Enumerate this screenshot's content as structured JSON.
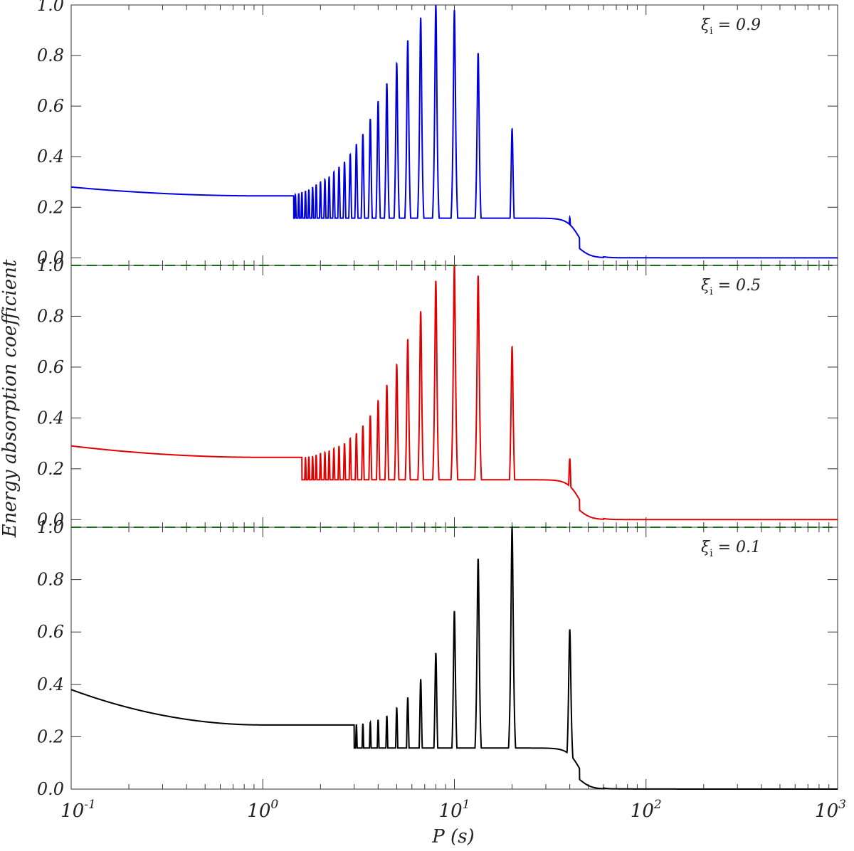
{
  "chart_data": {
    "type": "line",
    "xscale": "log",
    "xlim": [
      0.1,
      1000
    ],
    "xlabel": "P (s)",
    "ylabel": "Energy absorption coefficient",
    "x_ticks": [
      {
        "value": 0.1,
        "base": "10",
        "exp": "-1"
      },
      {
        "value": 1,
        "base": "10",
        "exp": "0"
      },
      {
        "value": 10,
        "base": "10",
        "exp": "1"
      },
      {
        "value": 100,
        "base": "10",
        "exp": "2"
      },
      {
        "value": 1000,
        "base": "10",
        "exp": "3"
      }
    ],
    "y_ticks": [
      "0.0",
      "0.2",
      "0.4",
      "0.6",
      "0.8",
      "1.0"
    ],
    "reference_line": {
      "y": 0.0,
      "style": "dashed",
      "color": "#00a000"
    },
    "panels": [
      {
        "label": "ξi = 0.9",
        "label_symbol": "ξ",
        "label_sub": "i",
        "label_rest": " = 0.9",
        "color": "#0000dd",
        "ylim": [
          -0.03,
          1.0
        ],
        "start_value": 0.28,
        "baseline_value": 0.245,
        "osc_start_period": 1.45,
        "series": {
          "name": "",
          "peaks": [
            {
              "x": 40,
              "y": 0.16
            },
            {
              "x": 20,
              "y": 0.51
            },
            {
              "x": 13.3,
              "y": 0.81
            },
            {
              "x": 10,
              "y": 0.98
            },
            {
              "x": 8,
              "y": 1.0
            },
            {
              "x": 6.67,
              "y": 0.95
            },
            {
              "x": 5.71,
              "y": 0.86
            },
            {
              "x": 5.0,
              "y": 0.77
            },
            {
              "x": 4.44,
              "y": 0.69
            },
            {
              "x": 4.0,
              "y": 0.62
            },
            {
              "x": 3.64,
              "y": 0.55
            },
            {
              "x": 3.33,
              "y": 0.49
            },
            {
              "x": 3.08,
              "y": 0.45
            },
            {
              "x": 2.86,
              "y": 0.41
            },
            {
              "x": 2.67,
              "y": 0.38
            },
            {
              "x": 2.5,
              "y": 0.36
            },
            {
              "x": 2.35,
              "y": 0.34
            },
            {
              "x": 2.22,
              "y": 0.32
            },
            {
              "x": 2.11,
              "y": 0.31
            },
            {
              "x": 2.0,
              "y": 0.3
            },
            {
              "x": 1.9,
              "y": 0.29
            },
            {
              "x": 1.82,
              "y": 0.28
            },
            {
              "x": 1.74,
              "y": 0.27
            },
            {
              "x": 1.67,
              "y": 0.265
            },
            {
              "x": 1.6,
              "y": 0.26
            },
            {
              "x": 1.54,
              "y": 0.255
            },
            {
              "x": 1.48,
              "y": 0.25
            }
          ]
        }
      },
      {
        "label": "ξi = 0.5",
        "label_symbol": "ξ",
        "label_sub": "i",
        "label_rest": " = 0.5",
        "color": "#e00000",
        "ylim": [
          -0.03,
          1.0
        ],
        "start_value": 0.29,
        "baseline_value": 0.245,
        "osc_start_period": 1.6,
        "series": {
          "name": "",
          "peaks": [
            {
              "x": 40,
              "y": 0.24
            },
            {
              "x": 20,
              "y": 0.68
            },
            {
              "x": 13.3,
              "y": 0.96
            },
            {
              "x": 10,
              "y": 1.0
            },
            {
              "x": 8,
              "y": 0.94
            },
            {
              "x": 6.67,
              "y": 0.82
            },
            {
              "x": 5.71,
              "y": 0.71
            },
            {
              "x": 5.0,
              "y": 0.61
            },
            {
              "x": 4.44,
              "y": 0.53
            },
            {
              "x": 4.0,
              "y": 0.47
            },
            {
              "x": 3.64,
              "y": 0.41
            },
            {
              "x": 3.33,
              "y": 0.37
            },
            {
              "x": 3.08,
              "y": 0.34
            },
            {
              "x": 2.86,
              "y": 0.32
            },
            {
              "x": 2.67,
              "y": 0.3
            },
            {
              "x": 2.5,
              "y": 0.29
            },
            {
              "x": 2.35,
              "y": 0.28
            },
            {
              "x": 2.22,
              "y": 0.27
            },
            {
              "x": 2.11,
              "y": 0.265
            },
            {
              "x": 2.0,
              "y": 0.26
            },
            {
              "x": 1.9,
              "y": 0.255
            },
            {
              "x": 1.82,
              "y": 0.25
            },
            {
              "x": 1.74,
              "y": 0.248
            },
            {
              "x": 1.67,
              "y": 0.246
            }
          ]
        }
      },
      {
        "label": "ξi = 0.1",
        "label_symbol": "ξ",
        "label_sub": "i",
        "label_rest": " = 0.1",
        "color": "#000000",
        "ylim": [
          0.0,
          1.0
        ],
        "start_value": 0.38,
        "baseline_value": 0.245,
        "osc_start_period": 3.0,
        "series": {
          "name": "",
          "peaks": [
            {
              "x": 40,
              "y": 0.61
            },
            {
              "x": 20,
              "y": 1.0
            },
            {
              "x": 13.3,
              "y": 0.88
            },
            {
              "x": 10,
              "y": 0.68
            },
            {
              "x": 8,
              "y": 0.52
            },
            {
              "x": 6.67,
              "y": 0.42
            },
            {
              "x": 5.71,
              "y": 0.35
            },
            {
              "x": 5.0,
              "y": 0.31
            },
            {
              "x": 4.44,
              "y": 0.28
            },
            {
              "x": 4.0,
              "y": 0.265
            },
            {
              "x": 3.64,
              "y": 0.255
            },
            {
              "x": 3.33,
              "y": 0.25
            },
            {
              "x": 3.08,
              "y": 0.247
            }
          ]
        }
      }
    ]
  }
}
